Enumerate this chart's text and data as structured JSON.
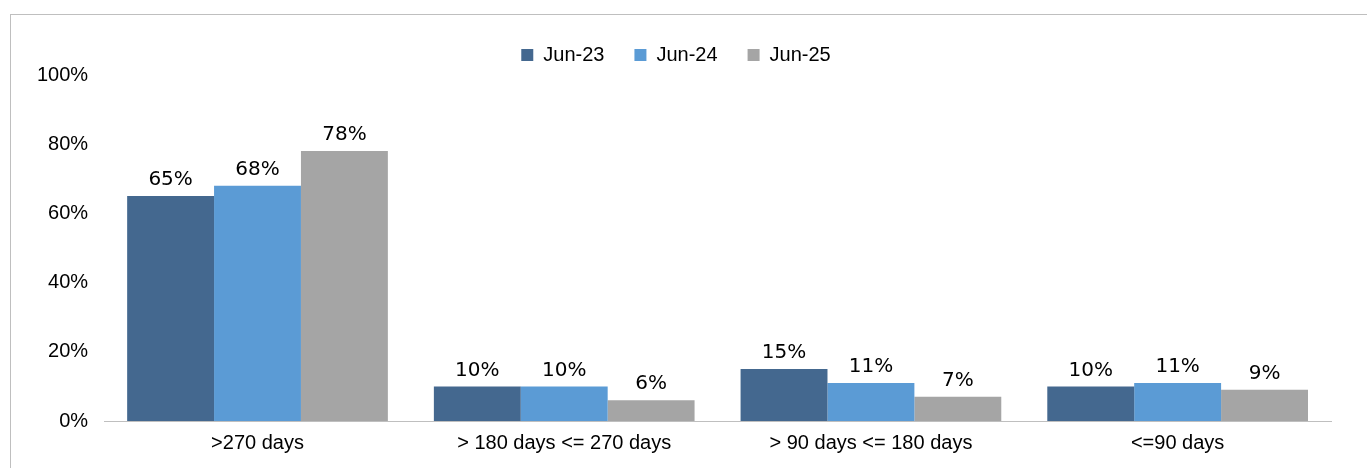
{
  "chart_data": {
    "type": "bar",
    "categories": [
      ">270 days",
      "> 180 days <= 270 days",
      "> 90 days <= 180 days",
      "<=90 days"
    ],
    "series": [
      {
        "name": "Jun-23",
        "color": "#44688f",
        "values": [
          65,
          10,
          15,
          10
        ],
        "value_labels": [
          "65%",
          "10%",
          "15%",
          "10%"
        ]
      },
      {
        "name": "Jun-24",
        "color": "#5b9bd5",
        "values": [
          68,
          10,
          11,
          11
        ],
        "value_labels": [
          "68%",
          "10%",
          "11%",
          "11%"
        ]
      },
      {
        "name": "Jun-25",
        "color": "#a5a5a5",
        "values": [
          78,
          6,
          7,
          9
        ],
        "value_labels": [
          "78%",
          "6%",
          "7%",
          "9%"
        ]
      }
    ],
    "ylim": [
      0,
      100
    ],
    "yticks": [
      {
        "value": 0,
        "label": "0%"
      },
      {
        "value": 20,
        "label": "20%"
      },
      {
        "value": 40,
        "label": "40%"
      },
      {
        "value": 60,
        "label": "60%"
      },
      {
        "value": 80,
        "label": "80%"
      },
      {
        "value": 100,
        "label": "100%"
      }
    ],
    "legend": "top",
    "grid": false
  }
}
